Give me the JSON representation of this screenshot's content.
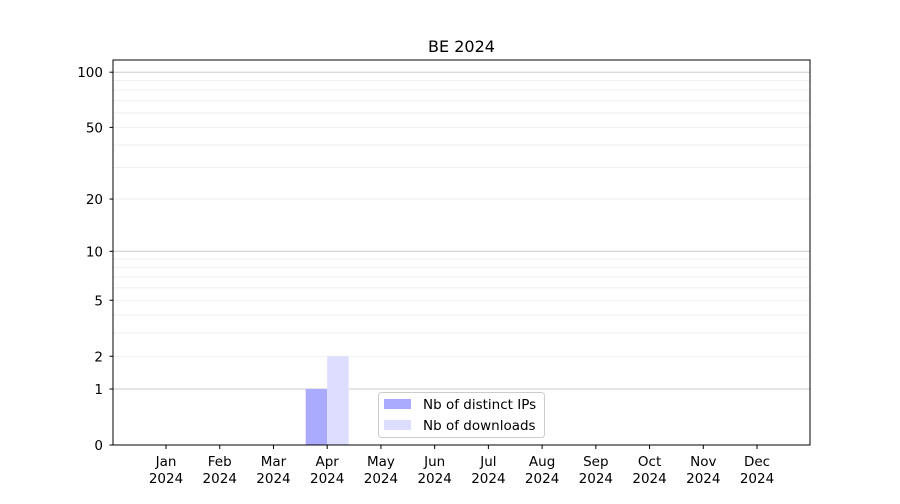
{
  "chart_data": {
    "type": "bar",
    "title": "BE 2024",
    "xlabel": "",
    "ylabel": "",
    "yscale": "symlog (log10(1+y))",
    "ylim": [
      0,
      116
    ],
    "yticks": [
      0,
      1,
      2,
      5,
      10,
      20,
      50,
      100
    ],
    "ytick_labels": [
      "0",
      "1",
      "2",
      "5",
      "10",
      "20",
      "50",
      "100"
    ],
    "grid": true,
    "categories": [
      "Jan\n2024",
      "Feb\n2024",
      "Mar\n2024",
      "Apr\n2024",
      "May\n2024",
      "Jun\n2024",
      "Jul\n2024",
      "Aug\n2024",
      "Sep\n2024",
      "Oct\n2024",
      "Nov\n2024",
      "Dec\n2024"
    ],
    "xtick_labels": [
      [
        "Jan",
        "2024"
      ],
      [
        "Feb",
        "2024"
      ],
      [
        "Mar",
        "2024"
      ],
      [
        "Apr",
        "2024"
      ],
      [
        "May",
        "2024"
      ],
      [
        "Jun",
        "2024"
      ],
      [
        "Jul",
        "2024"
      ],
      [
        "Aug",
        "2024"
      ],
      [
        "Sep",
        "2024"
      ],
      [
        "Oct",
        "2024"
      ],
      [
        "Nov",
        "2024"
      ],
      [
        "Dec",
        "2024"
      ]
    ],
    "series": [
      {
        "name": "Nb of distinct IPs",
        "color": "#aaaaff",
        "values": [
          0,
          0,
          0,
          1,
          0,
          0,
          0,
          0,
          0,
          0,
          0,
          0
        ]
      },
      {
        "name": "Nb of downloads",
        "color": "#ddddff",
        "values": [
          0,
          0,
          0,
          2,
          0,
          0,
          0,
          0,
          0,
          0,
          0,
          0
        ]
      }
    ],
    "legend": "lower-center"
  }
}
